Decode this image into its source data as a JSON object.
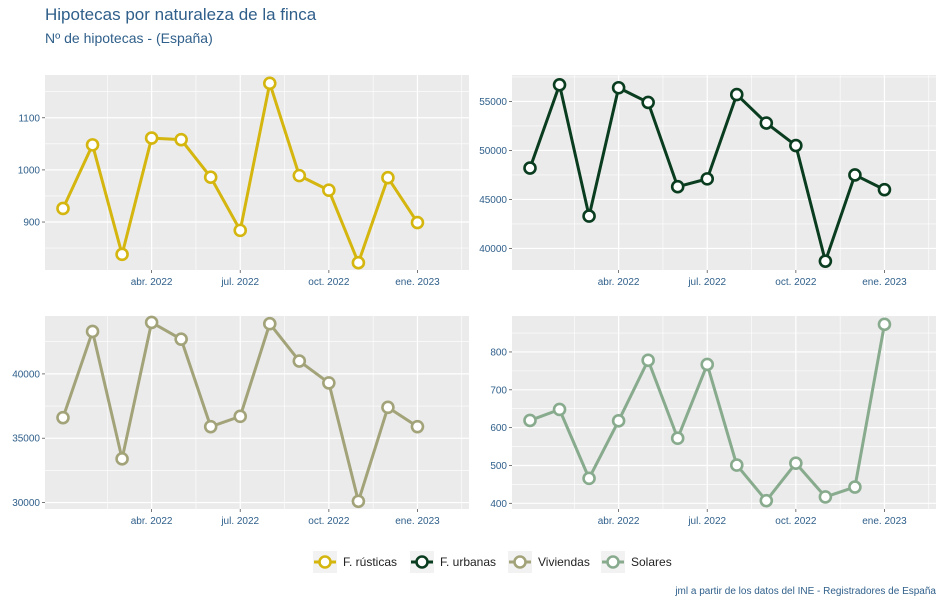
{
  "title": "Hipotecas por naturaleza de la finca",
  "subtitle": "Nº de hipotecas - (España)",
  "caption": "jml a partir de los datos del INE - Registradores de España",
  "colors": {
    "panel_bg": "#ebebeb",
    "grid": "#ffffff",
    "text": "#2f5f8a"
  },
  "chart_data": [
    {
      "type": "line",
      "series_name": "F. rústicas",
      "color": "#d4b60f",
      "x": [
        "2022-01",
        "2022-02",
        "2022-03",
        "2022-04",
        "2022-05",
        "2022-06",
        "2022-07",
        "2022-08",
        "2022-09",
        "2022-10",
        "2022-11",
        "2022-12",
        "2023-01",
        "2023-02"
      ],
      "values": [
        926,
        1048,
        838,
        1061,
        1058,
        986,
        884,
        1166,
        989,
        961,
        822,
        985,
        899,
        null
      ],
      "ylim": [
        808,
        1182
      ],
      "yticks": [
        900,
        1000,
        1100
      ],
      "ytick_labels": [
        "900",
        "1000",
        "1100"
      ]
    },
    {
      "type": "line",
      "series_name": "F. urbanas",
      "color": "#0a3d1f",
      "x": [
        "2022-01",
        "2022-02",
        "2022-03",
        "2022-04",
        "2022-05",
        "2022-06",
        "2022-07",
        "2022-08",
        "2022-09",
        "2022-10",
        "2022-11",
        "2022-12",
        "2023-01",
        "2023-02"
      ],
      "values": [
        48200,
        56700,
        43300,
        56400,
        54900,
        46300,
        47100,
        55700,
        52800,
        50500,
        38700,
        47500,
        46000,
        null
      ],
      "ylim": [
        37800,
        57700
      ],
      "yticks": [
        40000,
        45000,
        50000,
        55000
      ],
      "ytick_labels": [
        "40000",
        "45000",
        "50000",
        "55000"
      ]
    },
    {
      "type": "line",
      "series_name": "Viviendas",
      "color": "#a3a37a",
      "x": [
        "2022-01",
        "2022-02",
        "2022-03",
        "2022-04",
        "2022-05",
        "2022-06",
        "2022-07",
        "2022-08",
        "2022-09",
        "2022-10",
        "2022-11",
        "2022-12",
        "2023-01",
        "2023-02"
      ],
      "values": [
        36600,
        43300,
        33400,
        44000,
        42700,
        35900,
        36700,
        43900,
        41000,
        39300,
        30100,
        37400,
        35900,
        null
      ],
      "ylim": [
        29500,
        44500
      ],
      "yticks": [
        30000,
        35000,
        40000
      ],
      "ytick_labels": [
        "30000",
        "35000",
        "40000"
      ]
    },
    {
      "type": "line",
      "series_name": "Solares",
      "color": "#88ab8e",
      "x": [
        "2022-01",
        "2022-02",
        "2022-03",
        "2022-04",
        "2022-05",
        "2022-06",
        "2022-07",
        "2022-08",
        "2022-09",
        "2022-10",
        "2022-11",
        "2022-12",
        "2023-01",
        "2023-02"
      ],
      "values": [
        619,
        648,
        466,
        618,
        778,
        572,
        767,
        501,
        407,
        506,
        417,
        443,
        873,
        null
      ],
      "ylim": [
        385,
        895
      ],
      "yticks": [
        400,
        500,
        600,
        700,
        800
      ],
      "ytick_labels": [
        "400",
        "500",
        "600",
        "700",
        "800"
      ]
    }
  ],
  "xaxis": {
    "start": "2022-01",
    "end": "2023-02",
    "ticks": [
      "2022-04",
      "2022-07",
      "2022-10",
      "2023-01"
    ],
    "tick_labels": [
      "abr. 2022",
      "jul. 2022",
      "oct. 2022",
      "ene. 2023"
    ]
  },
  "legend": {
    "position": "bottom",
    "items": [
      "F. rústicas",
      "F. urbanas",
      "Viviendas",
      "Solares"
    ]
  }
}
